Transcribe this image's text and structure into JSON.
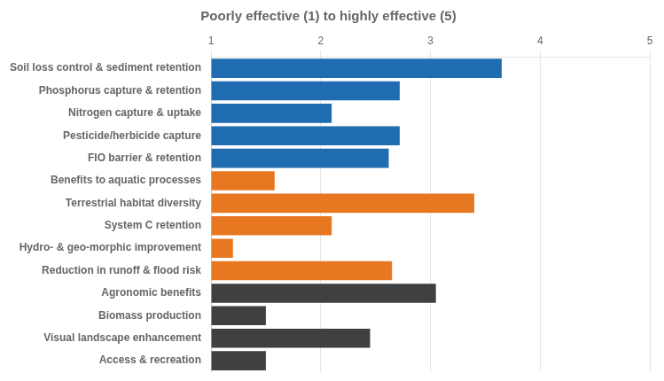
{
  "chart_data": {
    "type": "bar",
    "orientation": "horizontal",
    "title": "Poorly effective (1) to highly effective (5)",
    "categories": [
      "Access & recreation",
      "Visual landscape enhancement",
      "Biomass production",
      "Agronomic benefits",
      "Reduction in runoff & flood risk",
      "Hydro- & geo-morphic improvement",
      "System C retention",
      "Terrestrial habitat diversity",
      "Benefits to aquatic processes",
      "FIO barrier & retention",
      "Pesticide/herbicide capture",
      "Nitrogen capture & uptake",
      "Phosphorus capture & retention",
      "Soil loss control & sediment retention"
    ],
    "values": [
      1.5,
      2.45,
      1.5,
      3.05,
      2.65,
      1.2,
      2.1,
      3.4,
      1.58,
      2.62,
      2.72,
      2.1,
      2.72,
      3.65
    ],
    "colors": [
      "#404040",
      "#404040",
      "#404040",
      "#404040",
      "#E87722",
      "#E87722",
      "#E87722",
      "#E87722",
      "#E87722",
      "#1F6CB0",
      "#1F6CB0",
      "#1F6CB0",
      "#1F6CB0",
      "#1F6CB0"
    ],
    "xlim": [
      1,
      5
    ],
    "xticks": [
      1,
      2,
      3,
      4,
      5
    ],
    "grid": true
  }
}
